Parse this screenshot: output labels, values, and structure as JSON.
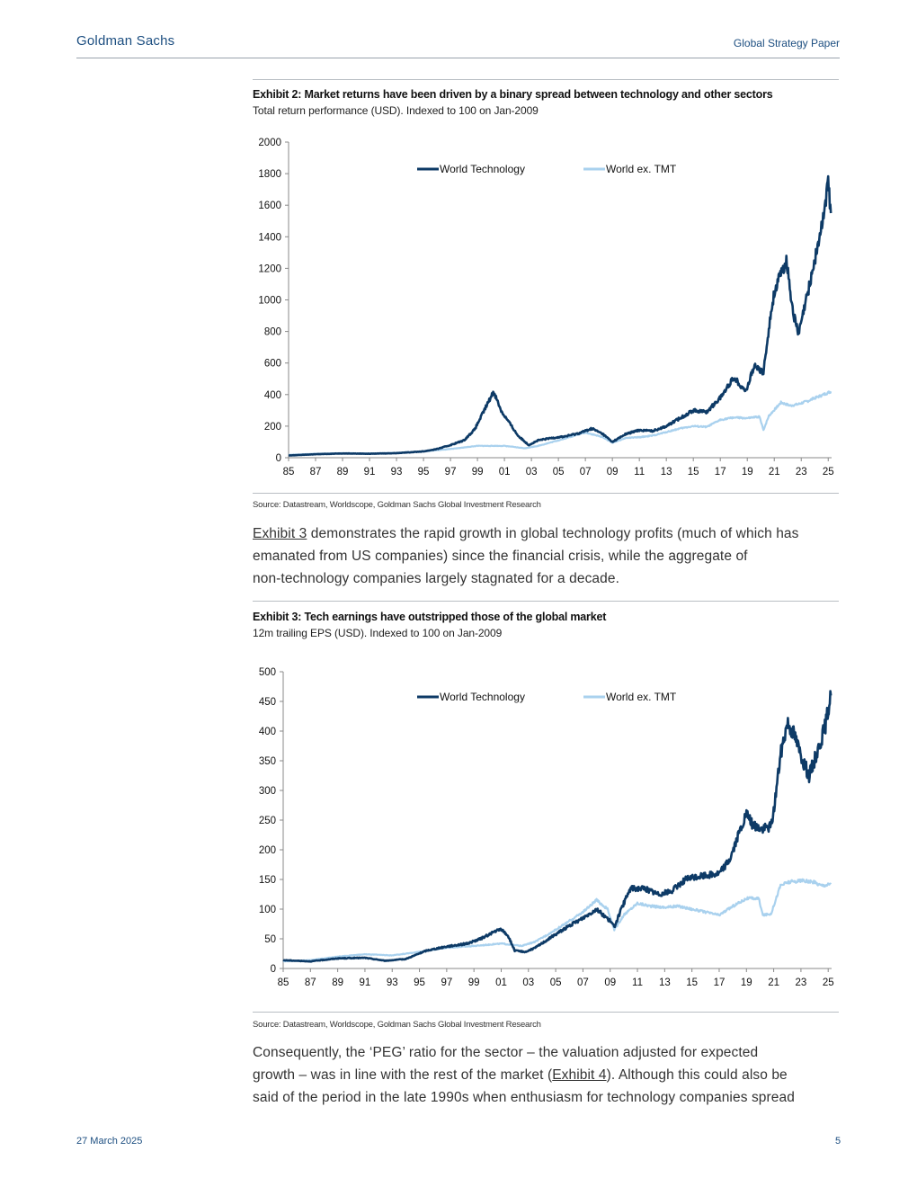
{
  "header": {
    "brand": "Goldman Sachs",
    "section": "Global Strategy Paper"
  },
  "exhibit2": {
    "title": "Exhibit 2: Market returns have been driven by a binary spread between technology and other sectors",
    "subtitle": "Total return performance (USD). Indexed to 100 on Jan-2009",
    "source": "Source: Datastream, Worldscope, Goldman Sachs Global Investment Research"
  },
  "paragraph1": {
    "link": "Exhibit 3",
    "rest_line1": " demonstrates the rapid growth in global technology profits (much of which has",
    "line2": "emanated from US companies) since the financial crisis, while the aggregate of",
    "line3": "non-technology companies largely stagnated for a decade."
  },
  "exhibit3": {
    "title": "Exhibit 3: Tech earnings have outstripped those of the global market",
    "subtitle": "12m trailing EPS (USD). Indexed to 100 on Jan-2009",
    "source": "Source: Datastream, Worldscope, Goldman Sachs Global Investment Research"
  },
  "paragraph2": {
    "line1": "Consequently, the ‘PEG’ ratio for the sector – the valuation adjusted for expected",
    "line2_pre": "growth – was in line with the rest of the market (",
    "line2_link": "Exhibit 4",
    "line2_post": "). Although this could also be",
    "line3": "said of the period in the late 1990s when enthusiasm for technology companies spread"
  },
  "footer": {
    "date": "27 March 2025",
    "page": "5"
  },
  "colors": {
    "tech": "#0d3a66",
    "ex_tmt": "#a9d1ee",
    "brand": "#1c4e80"
  },
  "chart_data": [
    {
      "type": "line",
      "title": "Exhibit 2: Market returns have been driven by a binary spread between technology and other sectors",
      "subtitle": "Total return performance (USD). Indexed to 100 on Jan-2009",
      "x_tick_labels": [
        "85",
        "87",
        "89",
        "91",
        "93",
        "95",
        "97",
        "99",
        "01",
        "03",
        "05",
        "07",
        "09",
        "11",
        "13",
        "15",
        "17",
        "19",
        "21",
        "23",
        "25"
      ],
      "x_range": [
        1985,
        2025.25
      ],
      "ylim": [
        0,
        2000
      ],
      "y_ticks": [
        0,
        200,
        400,
        600,
        800,
        1000,
        1200,
        1400,
        1600,
        1800,
        2000
      ],
      "legend_position": "top-center",
      "grid": false,
      "series": [
        {
          "name": "World Technology",
          "color": "#0d3a66",
          "points": [
            [
              1985.0,
              14
            ],
            [
              1987.0,
              22
            ],
            [
              1989.0,
              27
            ],
            [
              1991.0,
              25
            ],
            [
              1993.0,
              29
            ],
            [
              1995.0,
              40
            ],
            [
              1996.0,
              55
            ],
            [
              1997.0,
              80
            ],
            [
              1998.0,
              110
            ],
            [
              1998.8,
              180
            ],
            [
              1999.5,
              300
            ],
            [
              2000.2,
              420
            ],
            [
              2000.8,
              290
            ],
            [
              2001.3,
              230
            ],
            [
              2002.0,
              140
            ],
            [
              2002.8,
              80
            ],
            [
              2003.5,
              110
            ],
            [
              2004.5,
              125
            ],
            [
              2005.5,
              135
            ],
            [
              2006.5,
              155
            ],
            [
              2007.5,
              185
            ],
            [
              2008.3,
              150
            ],
            [
              2009.0,
              100
            ],
            [
              2010.0,
              150
            ],
            [
              2011.0,
              175
            ],
            [
              2012.0,
              170
            ],
            [
              2013.0,
              200
            ],
            [
              2014.0,
              250
            ],
            [
              2015.0,
              300
            ],
            [
              2016.0,
              290
            ],
            [
              2017.0,
              380
            ],
            [
              2018.0,
              510
            ],
            [
              2018.9,
              420
            ],
            [
              2019.5,
              580
            ],
            [
              2020.2,
              540
            ],
            [
              2020.6,
              820
            ],
            [
              2021.0,
              1050
            ],
            [
              2021.9,
              1250
            ],
            [
              2022.4,
              920
            ],
            [
              2022.8,
              780
            ],
            [
              2023.5,
              1050
            ],
            [
              2024.0,
              1250
            ],
            [
              2024.5,
              1450
            ],
            [
              2025.0,
              1750
            ],
            [
              2025.2,
              1550
            ]
          ]
        },
        {
          "name": "World ex. TMT",
          "color": "#a9d1ee",
          "points": [
            [
              1985.0,
              18
            ],
            [
              1987.0,
              25
            ],
            [
              1989.0,
              29
            ],
            [
              1991.0,
              27
            ],
            [
              1993.0,
              31
            ],
            [
              1995.0,
              40
            ],
            [
              1997.0,
              55
            ],
            [
              1999.0,
              75
            ],
            [
              2001.0,
              75
            ],
            [
              2002.5,
              60
            ],
            [
              2003.5,
              75
            ],
            [
              2005.0,
              110
            ],
            [
              2007.0,
              160
            ],
            [
              2008.3,
              130
            ],
            [
              2009.0,
              95
            ],
            [
              2010.0,
              125
            ],
            [
              2011.0,
              130
            ],
            [
              2012.0,
              140
            ],
            [
              2014.0,
              185
            ],
            [
              2015.0,
              200
            ],
            [
              2016.0,
              195
            ],
            [
              2017.0,
              240
            ],
            [
              2018.0,
              255
            ],
            [
              2019.0,
              250
            ],
            [
              2019.9,
              260
            ],
            [
              2020.2,
              175
            ],
            [
              2020.6,
              265
            ],
            [
              2021.5,
              350
            ],
            [
              2022.2,
              330
            ],
            [
              2022.8,
              340
            ],
            [
              2023.5,
              360
            ],
            [
              2024.5,
              395
            ],
            [
              2025.2,
              420
            ]
          ]
        }
      ]
    },
    {
      "type": "line",
      "title": "Exhibit 3: Tech earnings have outstripped those of the global market",
      "subtitle": "12m trailing EPS (USD). Indexed to 100 on Jan-2009",
      "x_tick_labels": [
        "85",
        "87",
        "89",
        "91",
        "93",
        "95",
        "97",
        "99",
        "01",
        "03",
        "05",
        "07",
        "09",
        "11",
        "13",
        "15",
        "17",
        "19",
        "21",
        "23",
        "25"
      ],
      "x_range": [
        1985,
        2025.25
      ],
      "ylim": [
        0,
        500
      ],
      "y_ticks": [
        0,
        50,
        100,
        150,
        200,
        250,
        300,
        350,
        400,
        450,
        500
      ],
      "legend_position": "top-center",
      "grid": false,
      "series": [
        {
          "name": "World Technology",
          "color": "#0d3a66",
          "points": [
            [
              1985.0,
              14
            ],
            [
              1987.0,
              12
            ],
            [
              1989.0,
              17
            ],
            [
              1991.0,
              18
            ],
            [
              1992.5,
              13
            ],
            [
              1994.0,
              16
            ],
            [
              1995.5,
              30
            ],
            [
              1997.0,
              37
            ],
            [
              1998.5,
              42
            ],
            [
              1999.5,
              50
            ],
            [
              2000.5,
              62
            ],
            [
              2001.0,
              66
            ],
            [
              2001.5,
              55
            ],
            [
              2002.0,
              30
            ],
            [
              2002.8,
              28
            ],
            [
              2003.5,
              35
            ],
            [
              2004.5,
              50
            ],
            [
              2005.5,
              65
            ],
            [
              2007.0,
              85
            ],
            [
              2008.0,
              100
            ],
            [
              2009.0,
              80
            ],
            [
              2009.3,
              70
            ],
            [
              2010.0,
              110
            ],
            [
              2010.5,
              135
            ],
            [
              2011.5,
              135
            ],
            [
              2012.5,
              125
            ],
            [
              2013.5,
              130
            ],
            [
              2014.5,
              150
            ],
            [
              2015.5,
              155
            ],
            [
              2017.0,
              160
            ],
            [
              2017.8,
              185
            ],
            [
              2018.5,
              230
            ],
            [
              2019.0,
              260
            ],
            [
              2019.5,
              240
            ],
            [
              2020.2,
              235
            ],
            [
              2020.8,
              240
            ],
            [
              2021.0,
              265
            ],
            [
              2021.5,
              360
            ],
            [
              2022.0,
              415
            ],
            [
              2022.5,
              395
            ],
            [
              2023.0,
              360
            ],
            [
              2023.6,
              325
            ],
            [
              2024.2,
              365
            ],
            [
              2024.8,
              410
            ],
            [
              2025.2,
              460
            ]
          ]
        },
        {
          "name": "World ex. TMT",
          "color": "#a9d1ee",
          "points": [
            [
              1985.0,
              12
            ],
            [
              1987.0,
              14
            ],
            [
              1989.0,
              20
            ],
            [
              1991.0,
              24
            ],
            [
              1993.0,
              22
            ],
            [
              1995.0,
              28
            ],
            [
              1997.0,
              35
            ],
            [
              1999.0,
              38
            ],
            [
              2001.0,
              42
            ],
            [
              2002.5,
              38
            ],
            [
              2003.5,
              45
            ],
            [
              2005.0,
              65
            ],
            [
              2007.0,
              95
            ],
            [
              2008.0,
              115
            ],
            [
              2008.8,
              100
            ],
            [
              2009.3,
              65
            ],
            [
              2010.0,
              90
            ],
            [
              2011.0,
              110
            ],
            [
              2012.0,
              105
            ],
            [
              2013.0,
              103
            ],
            [
              2014.0,
              105
            ],
            [
              2015.0,
              100
            ],
            [
              2016.0,
              95
            ],
            [
              2017.0,
              90
            ],
            [
              2018.0,
              105
            ],
            [
              2019.0,
              118
            ],
            [
              2019.9,
              118
            ],
            [
              2020.2,
              90
            ],
            [
              2020.8,
              92
            ],
            [
              2021.5,
              140
            ],
            [
              2022.0,
              145
            ],
            [
              2023.0,
              148
            ],
            [
              2024.0,
              145
            ],
            [
              2024.5,
              140
            ],
            [
              2025.2,
              142
            ]
          ]
        }
      ]
    }
  ]
}
